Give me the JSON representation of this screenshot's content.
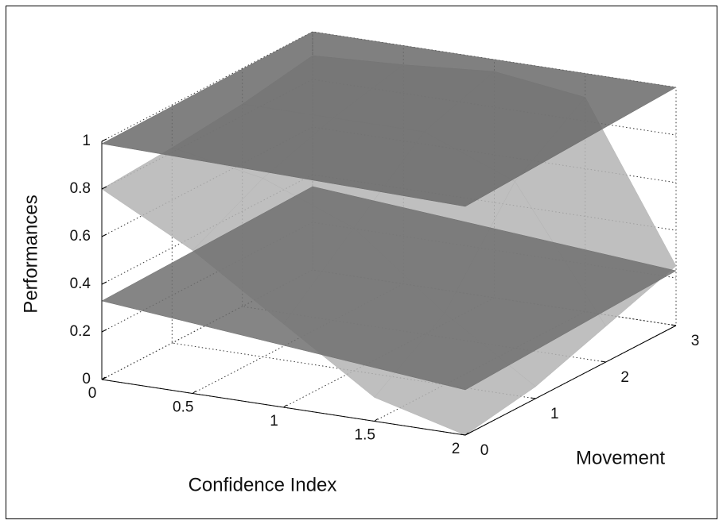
{
  "chart_data": {
    "type": "surface3d",
    "xlabel": "Confidence Index",
    "ylabel": "Movement",
    "zlabel": "Performances",
    "xlim": [
      0,
      2
    ],
    "ylim": [
      0,
      3
    ],
    "zlim": [
      0,
      1
    ],
    "xticks": [
      0,
      0.5,
      1,
      1.5,
      2
    ],
    "yticks": [
      0,
      1,
      2,
      3
    ],
    "zticks": [
      0,
      0.2,
      0.4,
      0.6,
      0.8,
      1
    ],
    "grid": true,
    "series": [
      {
        "color": "#b4b4b4",
        "x": [
          0,
          0.5,
          1,
          1.5,
          2
        ],
        "y": [
          0,
          1,
          2,
          3
        ],
        "values": [
          [
            0.8,
            0.82,
            0.85,
            0.9
          ],
          [
            0.6,
            0.75,
            0.85,
            0.92
          ],
          [
            0.35,
            0.6,
            0.85,
            0.95
          ],
          [
            0.1,
            0.3,
            0.7,
            0.9
          ],
          [
            0.0,
            0.05,
            0.15,
            0.25
          ]
        ]
      },
      {
        "color": "#707070",
        "x": [
          0,
          2
        ],
        "y": [
          0,
          3
        ],
        "values": [
          [
            0.33,
            0.35
          ],
          [
            0.19,
            0.23
          ]
        ]
      },
      {
        "color": "#6a6a6a",
        "x": [
          0,
          2
        ],
        "y": [
          0,
          3
        ],
        "values": [
          [
            0.99,
            1.0
          ],
          [
            0.96,
            1.0
          ]
        ]
      }
    ]
  }
}
